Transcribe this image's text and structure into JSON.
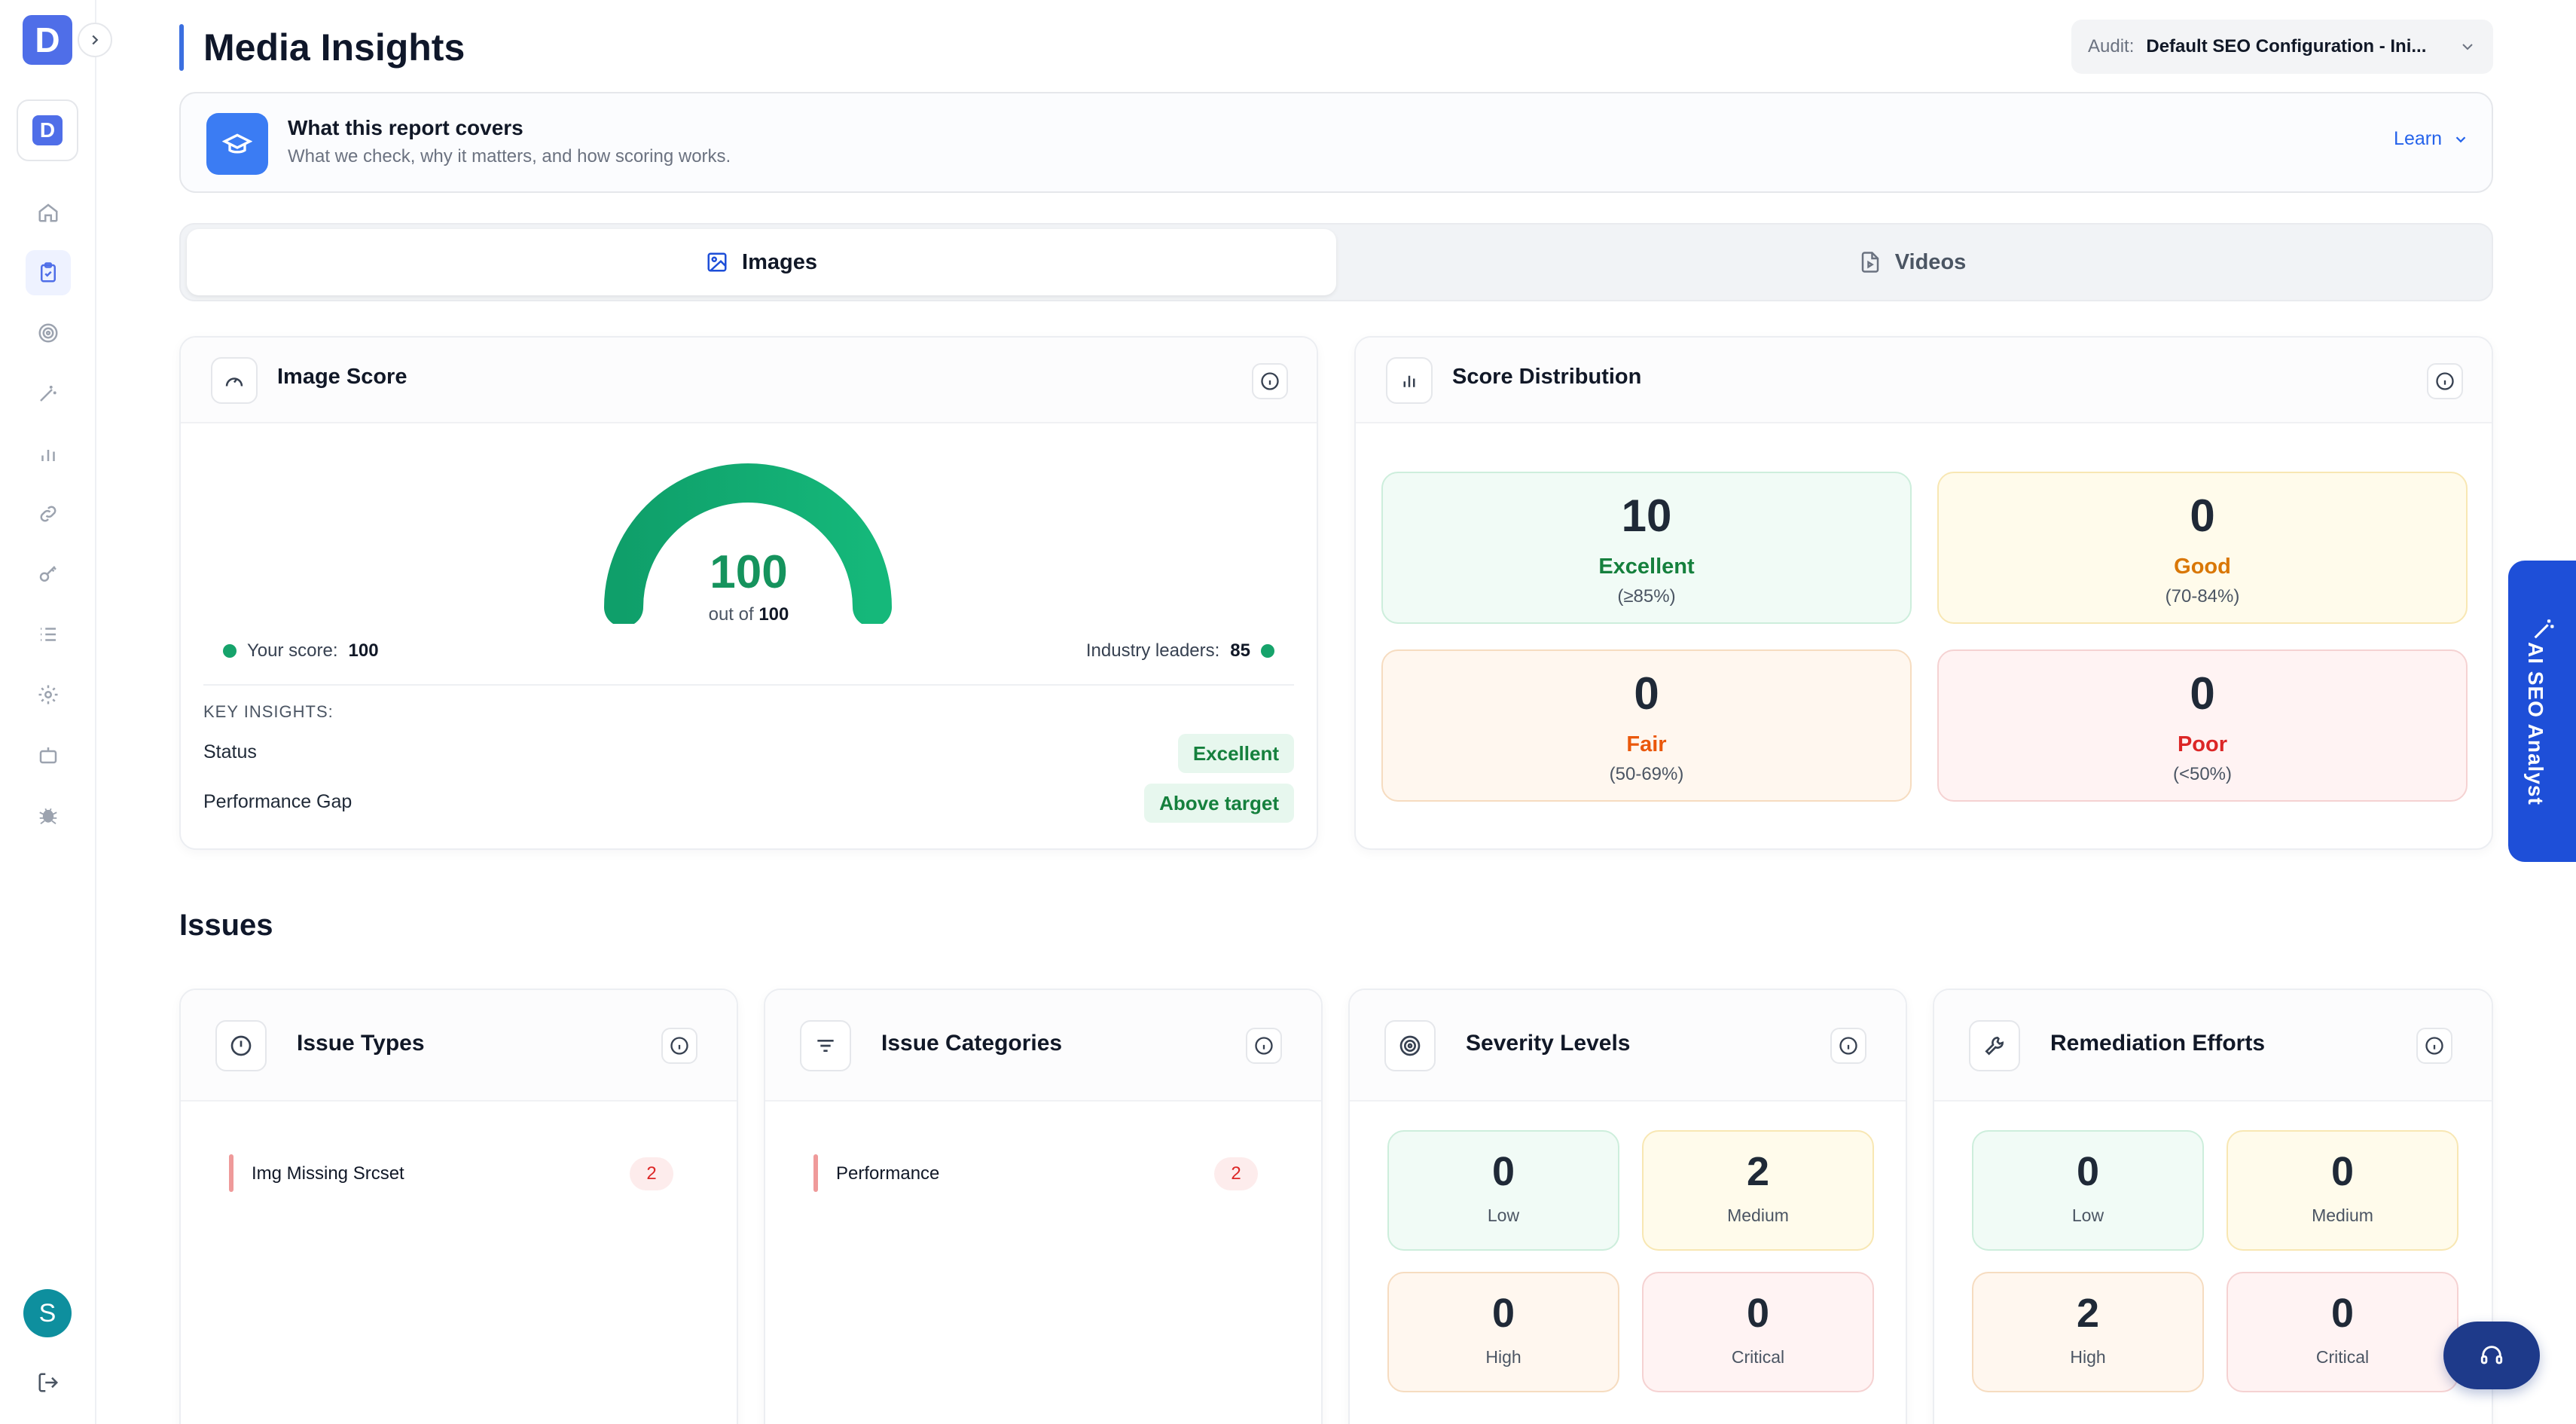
{
  "sidebar": {
    "logo_letter": "D",
    "workspace_letter": "D",
    "nav_icons": [
      "home-icon",
      "clipboard-check-icon",
      "target-icon",
      "magic-wand-icon",
      "bar-chart-icon",
      "link-icon",
      "key-icon",
      "list-icon",
      "gear-icon",
      "bot-icon",
      "bug-icon"
    ],
    "active_index": 1,
    "avatar_letter": "S"
  },
  "header": {
    "title": "Media Insights",
    "audit_label": "Audit:",
    "audit_value": "Default SEO Configuration - Ini..."
  },
  "banner": {
    "title": "What this report covers",
    "subtitle": "What we check, why it matters, and how scoring works.",
    "learn_label": "Learn"
  },
  "tabs": [
    {
      "label": "Images",
      "active": true
    },
    {
      "label": "Videos",
      "active": false
    }
  ],
  "image_score": {
    "title": "Image Score",
    "score": "100",
    "out_of_prefix": "out of",
    "out_of_value": "100",
    "fill_fraction": 1.0,
    "your_score_label": "Your score:",
    "your_score_value": "100",
    "industry_label": "Industry leaders:",
    "industry_value": "85",
    "key_insights_label": "KEY INSIGHTS:",
    "insights": [
      {
        "name": "Status",
        "badge": "Excellent"
      },
      {
        "name": "Performance Gap",
        "badge": "Above target"
      }
    ]
  },
  "score_distribution": {
    "title": "Score Distribution",
    "tiles": [
      {
        "count": "10",
        "label": "Excellent",
        "range": "(≥85%)",
        "label_color": "#15803d"
      },
      {
        "count": "0",
        "label": "Good",
        "range": "(70-84%)",
        "label_color": "#d97706"
      },
      {
        "count": "0",
        "label": "Fair",
        "range": "(50-69%)",
        "label_color": "#ea580c"
      },
      {
        "count": "0",
        "label": "Poor",
        "range": "(<50%)",
        "label_color": "#dc2626"
      }
    ]
  },
  "issues": {
    "section_title": "Issues",
    "issue_types": {
      "title": "Issue Types",
      "items": [
        {
          "name": "Img Missing Srcset",
          "count": "2"
        }
      ]
    },
    "issue_categories": {
      "title": "Issue Categories",
      "items": [
        {
          "name": "Performance",
          "count": "2"
        }
      ]
    },
    "severity_levels": {
      "title": "Severity Levels",
      "tiles": [
        {
          "count": "0",
          "label": "Low"
        },
        {
          "count": "2",
          "label": "Medium"
        },
        {
          "count": "0",
          "label": "High"
        },
        {
          "count": "0",
          "label": "Critical"
        }
      ]
    },
    "remediation_efforts": {
      "title": "Remediation Efforts",
      "tiles": [
        {
          "count": "0",
          "label": "Low"
        },
        {
          "count": "0",
          "label": "Medium"
        },
        {
          "count": "2",
          "label": "High"
        },
        {
          "count": "0",
          "label": "Critical"
        }
      ]
    }
  },
  "ai_analyst": {
    "label": "AI SEO Analyst"
  },
  "colors": {
    "accent": "#4f6ee8",
    "success": "#15935d",
    "ai_panel": "#1e4fd8"
  }
}
